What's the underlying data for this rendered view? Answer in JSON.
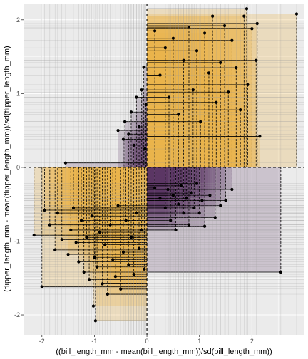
{
  "chart_data": {
    "type": "scatter",
    "title": "",
    "xlabel": "((bill_length_mm - mean(bill_length_mm))/sd(bill_length_mm))",
    "ylabel": "(flipper_length_mm - mean(flipper_length_mm))/sd(flipper_length_mm)",
    "xlim": [
      -2.35,
      3.0
    ],
    "ylim": [
      -2.27,
      2.22
    ],
    "x_ticks": [
      -2,
      -1,
      0,
      1,
      2
    ],
    "y_ticks": [
      -2,
      -1,
      0,
      1,
      2
    ],
    "grid": true,
    "legend": "none",
    "reference_lines": {
      "x": 0,
      "y": 0
    },
    "colors": {
      "positive_product": "#e8b54a",
      "negative_product": "#5c3566",
      "panel_background": "#ebebeb",
      "grid": "#ffffff",
      "point": "#000000"
    },
    "points": [
      {
        "x": -2.15,
        "y": -0.92
      },
      {
        "x": -2.0,
        "y": -1.62
      },
      {
        "x": -1.95,
        "y": -0.58
      },
      {
        "x": -1.85,
        "y": -0.78
      },
      {
        "x": -1.75,
        "y": -1.12
      },
      {
        "x": -1.7,
        "y": -0.62
      },
      {
        "x": -1.62,
        "y": -0.98
      },
      {
        "x": -1.55,
        "y": 0.06
      },
      {
        "x": -1.5,
        "y": -1.18
      },
      {
        "x": -1.45,
        "y": -0.85
      },
      {
        "x": -1.4,
        "y": -0.55
      },
      {
        "x": -1.35,
        "y": -1.02
      },
      {
        "x": -1.3,
        "y": -1.28
      },
      {
        "x": -1.25,
        "y": -0.72
      },
      {
        "x": -1.2,
        "y": -1.42
      },
      {
        "x": -1.15,
        "y": -0.95
      },
      {
        "x": -1.1,
        "y": -1.52
      },
      {
        "x": -1.05,
        "y": -0.66
      },
      {
        "x": -1.02,
        "y": -1.88
      },
      {
        "x": -1.0,
        "y": -1.22
      },
      {
        "x": -0.98,
        "y": -2.08
      },
      {
        "x": -0.95,
        "y": -1.35
      },
      {
        "x": -0.9,
        "y": -0.88
      },
      {
        "x": -0.85,
        "y": -1.58
      },
      {
        "x": -0.8,
        "y": -1.05
      },
      {
        "x": -0.75,
        "y": -1.72
      },
      {
        "x": -0.7,
        "y": -0.78
      },
      {
        "x": -0.65,
        "y": -1.25
      },
      {
        "x": -0.6,
        "y": -1.48
      },
      {
        "x": -0.55,
        "y": -0.52
      },
      {
        "x": -0.5,
        "y": -1.65
      },
      {
        "x": -0.45,
        "y": -1.15
      },
      {
        "x": -0.4,
        "y": -0.72
      },
      {
        "x": -0.35,
        "y": -1.32
      },
      {
        "x": -0.3,
        "y": -0.95
      },
      {
        "x": -0.25,
        "y": -1.45
      },
      {
        "x": -0.2,
        "y": -0.62
      },
      {
        "x": -0.15,
        "y": -1.1
      },
      {
        "x": -0.1,
        "y": -0.85
      },
      {
        "x": -0.05,
        "y": -1.38
      },
      {
        "x": -0.55,
        "y": 0.5
      },
      {
        "x": -0.45,
        "y": 0.38
      },
      {
        "x": -0.42,
        "y": 0.62
      },
      {
        "x": -0.35,
        "y": 0.45
      },
      {
        "x": -0.3,
        "y": 0.75
      },
      {
        "x": -0.25,
        "y": 0.3
      },
      {
        "x": -0.2,
        "y": 0.95
      },
      {
        "x": -0.15,
        "y": 0.55
      },
      {
        "x": -0.1,
        "y": 1.05
      },
      {
        "x": -0.06,
        "y": 1.36
      },
      {
        "x": -0.04,
        "y": 0.25
      },
      {
        "x": -0.02,
        "y": 0.85
      },
      {
        "x": 0.15,
        "y": -0.28
      },
      {
        "x": 0.25,
        "y": -0.42
      },
      {
        "x": 0.35,
        "y": -0.55
      },
      {
        "x": 0.4,
        "y": -0.3
      },
      {
        "x": 0.45,
        "y": -0.72
      },
      {
        "x": 0.5,
        "y": -0.38
      },
      {
        "x": 0.55,
        "y": -0.85
      },
      {
        "x": 0.6,
        "y": -0.5
      },
      {
        "x": 0.65,
        "y": -0.25
      },
      {
        "x": 0.7,
        "y": -0.62
      },
      {
        "x": 0.75,
        "y": -0.42
      },
      {
        "x": 0.8,
        "y": -0.78
      },
      {
        "x": 0.85,
        "y": -0.35
      },
      {
        "x": 0.9,
        "y": -0.55
      },
      {
        "x": 0.95,
        "y": -0.22
      },
      {
        "x": 1.0,
        "y": -0.62
      },
      {
        "x": 1.05,
        "y": -0.45
      },
      {
        "x": 1.1,
        "y": -0.8
      },
      {
        "x": 1.2,
        "y": -0.38
      },
      {
        "x": 1.3,
        "y": -0.68
      },
      {
        "x": 1.4,
        "y": -0.52
      },
      {
        "x": 1.5,
        "y": -0.45
      },
      {
        "x": 1.62,
        "y": -0.3
      },
      {
        "x": 2.55,
        "y": -1.42
      },
      {
        "x": 0.15,
        "y": 1.85
      },
      {
        "x": 0.25,
        "y": 1.25
      },
      {
        "x": 0.35,
        "y": 1.62
      },
      {
        "x": 0.42,
        "y": 0.95
      },
      {
        "x": 0.5,
        "y": 1.75
      },
      {
        "x": 0.6,
        "y": 0.72
      },
      {
        "x": 0.7,
        "y": 1.45
      },
      {
        "x": 0.8,
        "y": 1.9
      },
      {
        "x": 0.88,
        "y": 1.05
      },
      {
        "x": 0.95,
        "y": 1.58
      },
      {
        "x": 1.02,
        "y": 0.62
      },
      {
        "x": 1.1,
        "y": 1.82
      },
      {
        "x": 1.18,
        "y": 1.28
      },
      {
        "x": 1.25,
        "y": 2.05
      },
      {
        "x": 1.32,
        "y": 0.88
      },
      {
        "x": 1.4,
        "y": 1.42
      },
      {
        "x": 1.48,
        "y": 1.92
      },
      {
        "x": 1.55,
        "y": 1.02
      },
      {
        "x": 1.62,
        "y": 1.72
      },
      {
        "x": 1.7,
        "y": 1.35
      },
      {
        "x": 1.78,
        "y": 0.78
      },
      {
        "x": 1.85,
        "y": 2.05
      },
      {
        "x": 1.92,
        "y": 1.12
      },
      {
        "x": 2.0,
        "y": 1.88
      },
      {
        "x": 2.08,
        "y": 1.45
      },
      {
        "x": 2.15,
        "y": 0.42
      },
      {
        "x": 1.9,
        "y": 2.15
      },
      {
        "x": 2.85,
        "y": 2.08
      },
      {
        "x": 2.1,
        "y": 1.95
      }
    ]
  }
}
